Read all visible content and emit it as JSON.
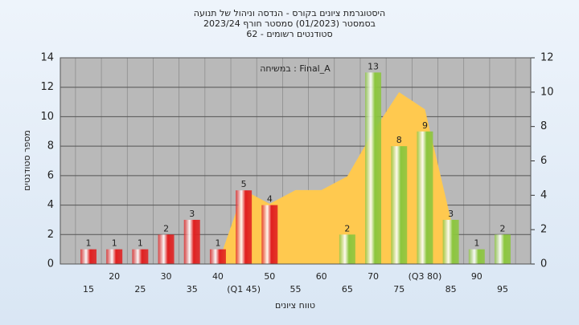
{
  "chart_data": {
    "type": "bar",
    "title": [
      "היסטוגרמת ציונים בקורס - הנדסה וניהול של תנועה",
      "בסמסטר  (01/2023)  סמסטר חורף 2023/24",
      "סטודנטים רשומים - 62"
    ],
    "annotation": "במשיחה : Final_A",
    "xlabel": "טווח ציונים",
    "ylabel": "מספר סטודנטים",
    "categories": [
      "15",
      "20",
      "25",
      "30",
      "35",
      "40",
      "(Q1 45)",
      "50",
      "55",
      "60",
      "65",
      "70",
      "75",
      "(Q3 80)",
      "85",
      "90",
      "95"
    ],
    "values": [
      1,
      1,
      1,
      2,
      3,
      1,
      5,
      4,
      0,
      0,
      2,
      13,
      8,
      9,
      3,
      1,
      2
    ],
    "colors": [
      "#e02020",
      "#e02020",
      "#e02020",
      "#e02020",
      "#e02020",
      "#e02020",
      "#e02020",
      "#e02020",
      "#e02020",
      "#e02020",
      "#8cc63e",
      "#8cc63e",
      "#8cc63e",
      "#8cc63e",
      "#8cc63e",
      "#8cc63e",
      "#8cc63e"
    ],
    "area": {
      "axis": "y2",
      "color": "#ffc94f",
      "values": [
        null,
        null,
        null,
        null,
        null,
        0,
        4.3,
        3.5,
        4.3,
        4.3,
        5.1,
        7.7,
        10,
        9,
        2.6,
        null,
        null
      ]
    },
    "ylim": [
      0,
      14
    ],
    "yticks": [
      0,
      2,
      4,
      6,
      8,
      10,
      12,
      14
    ],
    "y2lim": [
      0,
      12
    ],
    "y2ticks": [
      0,
      2,
      4,
      6,
      8,
      10,
      12
    ],
    "grid": true
  }
}
